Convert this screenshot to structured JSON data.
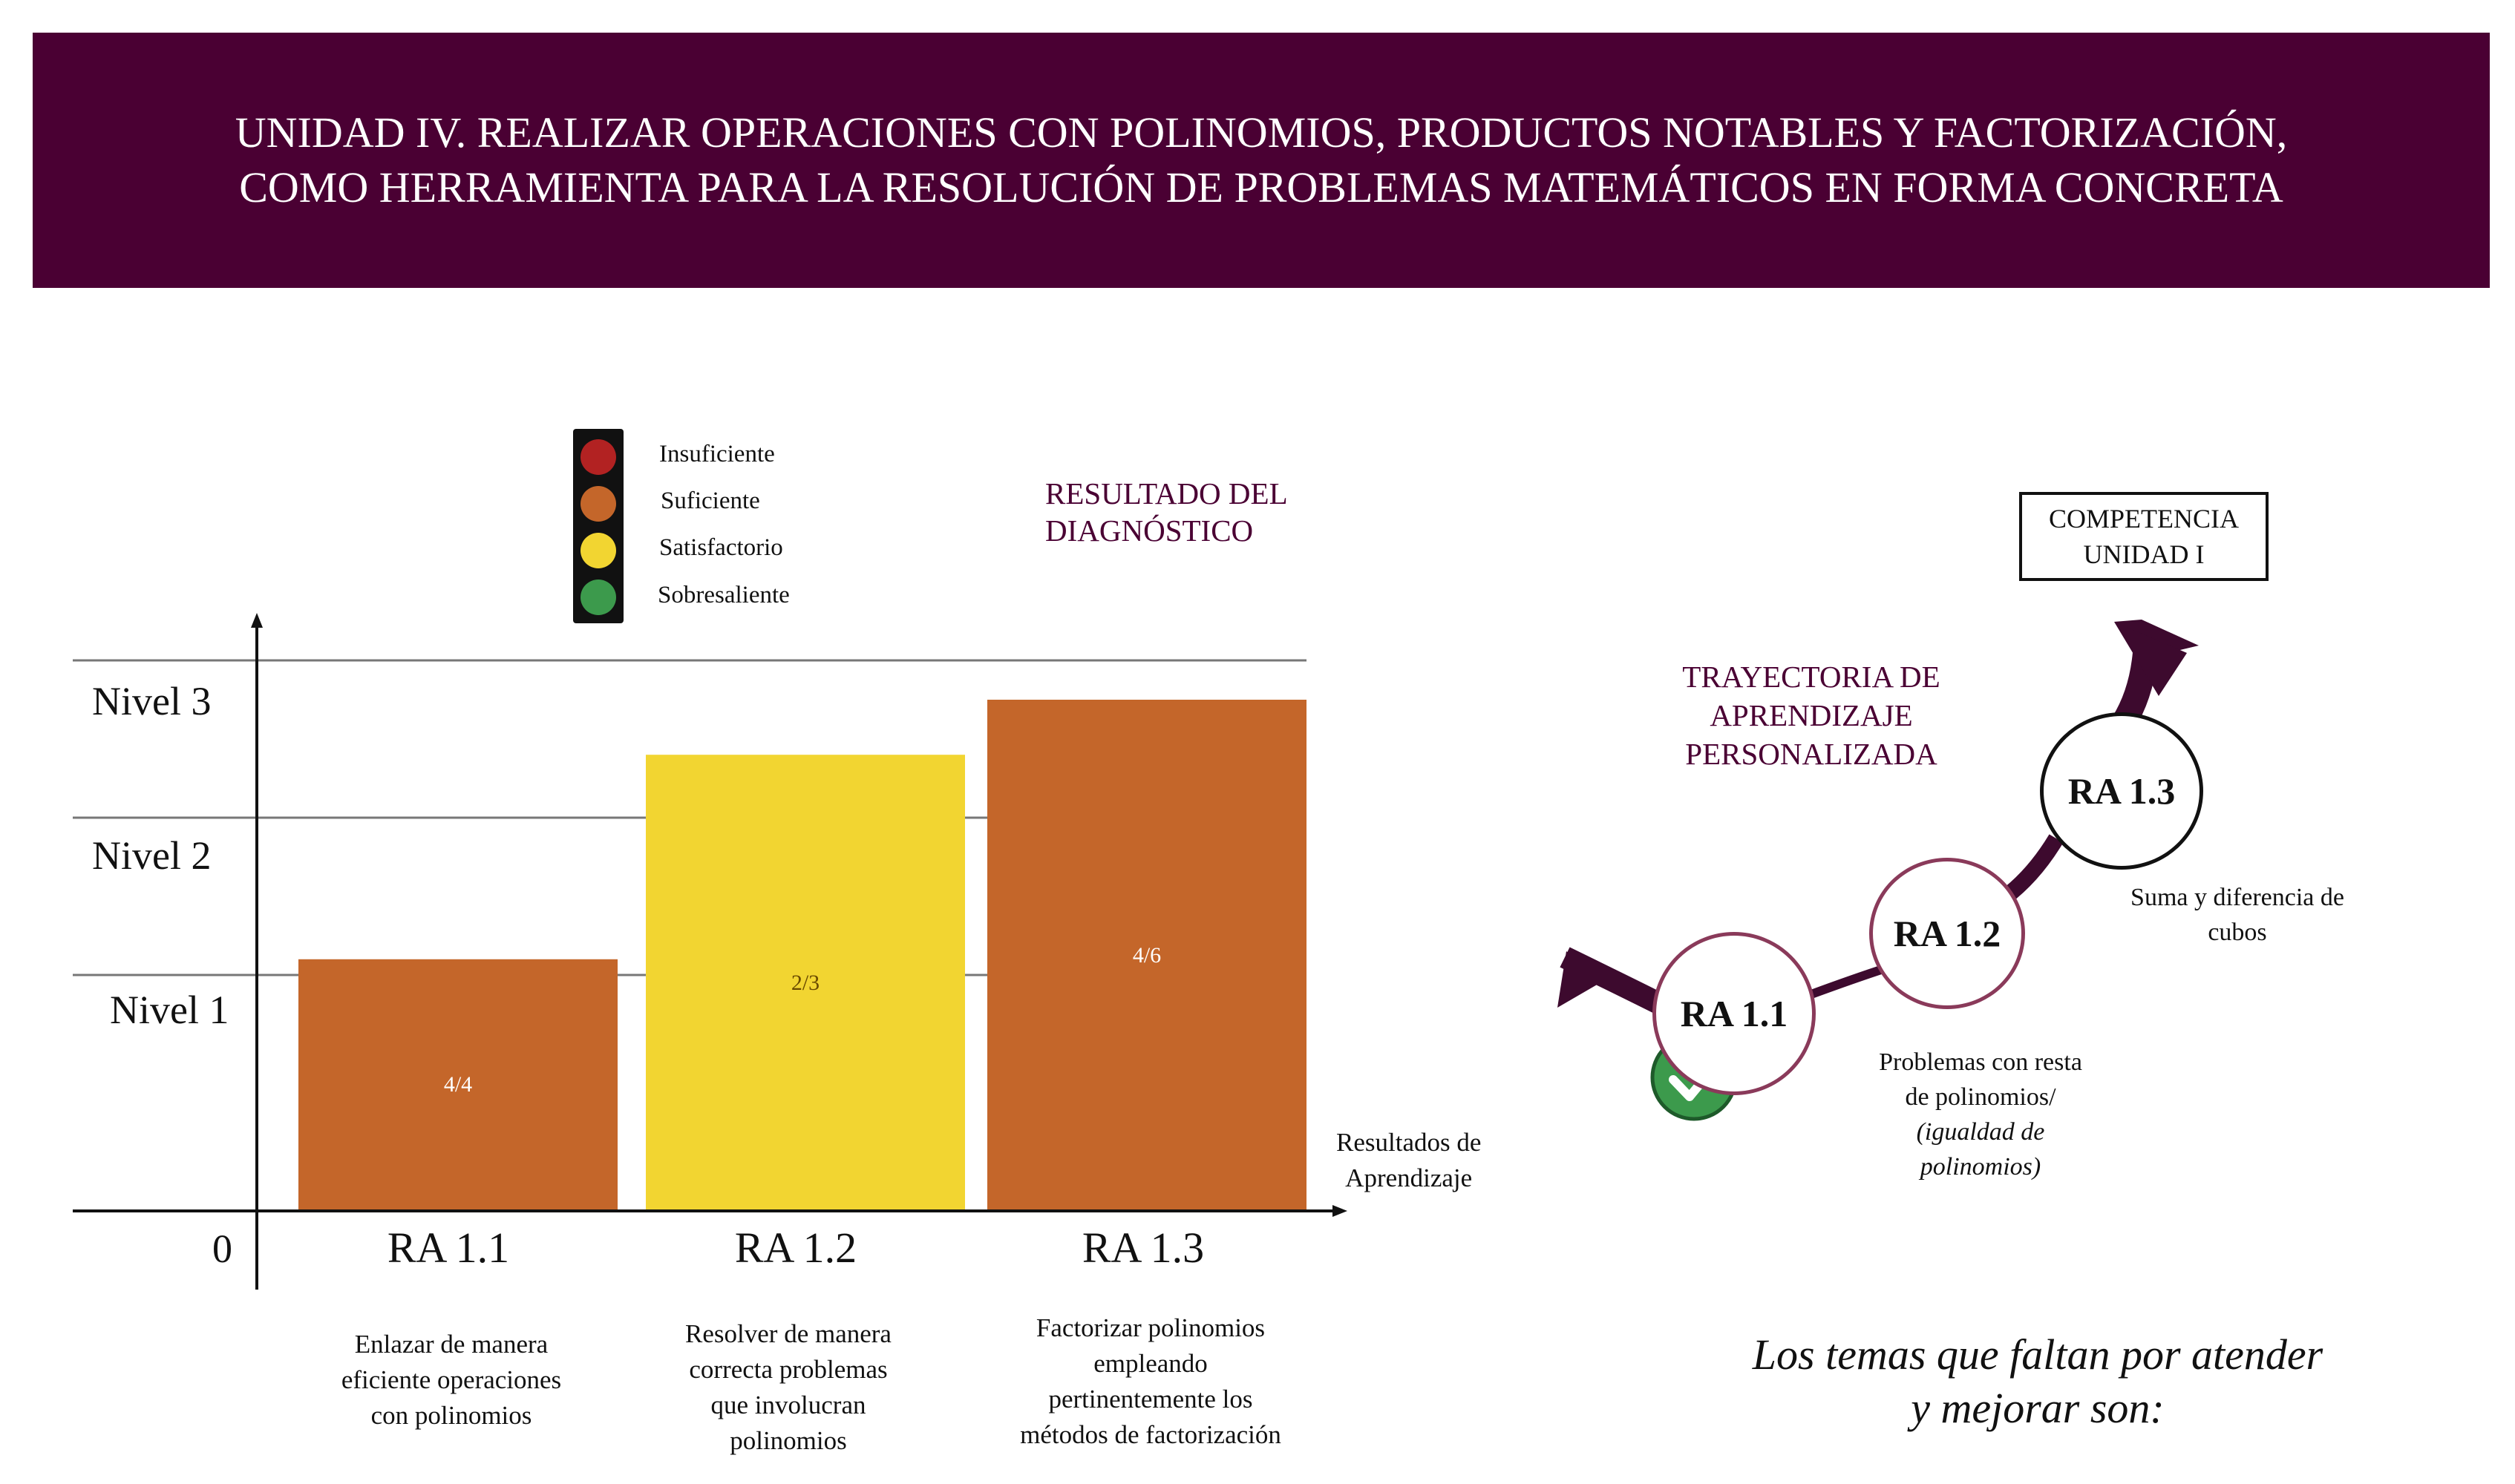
{
  "header": {
    "line1": "UNIDAD IV. REALIZAR OPERACIONES CON POLINOMIOS, PRODUCTOS NOTABLES Y FACTORIZACIÓN,",
    "line2": "COMO HERRAMIENTA PARA LA RESOLUCIÓN DE PROBLEMAS MATEMÁTICOS EN FORMA CONCRETA"
  },
  "legend": [
    {
      "label": "Insuficiente",
      "color": "#b22222"
    },
    {
      "label": "Suficiente",
      "color": "#c4662a"
    },
    {
      "label": "Satisfactorio",
      "color": "#f2d531"
    },
    {
      "label": "Sobresaliente",
      "color": "#3c9a4c"
    }
  ],
  "diagnostico_title": {
    "line1": "RESULTADO DEL",
    "line2": "DIAGNÓSTICO"
  },
  "chart_data": {
    "type": "bar",
    "categories": [
      "RA 1.1",
      "RA 1.2",
      "RA 1.3"
    ],
    "values": [
      1.6,
      2.9,
      3.25
    ],
    "value_labels": [
      "4/4",
      "2/3",
      "4/6"
    ],
    "colors": [
      "#c4662a",
      "#f2d531",
      "#c4662a"
    ],
    "y_tick_labels": [
      "0",
      "Nivel 1",
      "Nivel 2",
      "Nivel 3"
    ],
    "y_gridlines": [
      1.5,
      2.5,
      3.5
    ],
    "ylim": [
      0,
      3.5
    ],
    "xlabel_line1": "Resultados de",
    "xlabel_line2": "Aprendizaje",
    "descriptions": [
      [
        "Enlazar de manera",
        "eficiente operaciones",
        "con polinomios"
      ],
      [
        "Resolver de manera",
        "correcta problemas",
        "que involucran",
        "polinomios"
      ],
      [
        "Factorizar polinomios",
        "empleando",
        "pertinentemente los",
        "métodos de factorización"
      ]
    ]
  },
  "trayectoria": {
    "title_lines": [
      "TRAYECTORIA DE",
      "APRENDIZAJE",
      "PERSONALIZADA"
    ],
    "competencia_lines": [
      "COMPETENCIA",
      "UNIDAD I"
    ],
    "nodes": [
      {
        "label": "RA 1.1"
      },
      {
        "label": "RA 1.2"
      },
      {
        "label": "RA 1.3"
      }
    ],
    "node_desc_12": {
      "line1": "Problemas con resta",
      "line2": "de polinomios/",
      "line3": "(igualdad de",
      "line4": "polinomios)"
    },
    "node_desc_13": {
      "line1": "Suma y diferencia de",
      "line2": "cubos"
    },
    "path_color": "#3d0a2e",
    "check_color": "#3c9a4c"
  },
  "closing": {
    "line1": "Los temas que faltan por atender",
    "line2": "y mejorar son:"
  }
}
